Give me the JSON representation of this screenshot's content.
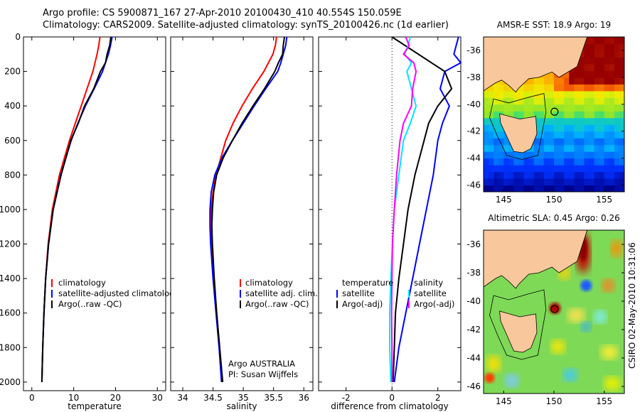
{
  "header": {
    "line1": "Argo profile: CS 5900871_167 27-Apr-2010 20100430_410 40.554S 150.059E",
    "line2": "Climatology: CARS2009. Satellite-adjusted climatology: synTS_20100426.nc (1d earlier)"
  },
  "colors": {
    "climatology": "#ff0000",
    "satellite": "#0000ff",
    "argo": "#000000",
    "argo_salinity_diff": "#ff00ff",
    "satellite_salinity_diff": "#00e5ff",
    "land": "#f9c79c"
  },
  "chart_data": [
    {
      "type": "line",
      "xlabel": "temperature",
      "ylabel": "",
      "xlim": [
        -2,
        32
      ],
      "ylim": [
        2050,
        0
      ],
      "xticks": [
        0,
        10,
        20,
        30
      ],
      "yticks": [
        0,
        200,
        400,
        600,
        800,
        1000,
        1200,
        1400,
        1600,
        1800,
        2000
      ],
      "legend": {
        "placement": "middle-right",
        "entries": [
          "climatology",
          "satellite-adjusted climatology",
          "Argo(..raw -QC)"
        ]
      },
      "series": [
        {
          "name": "climatology",
          "color": "#ff0000",
          "depth": [
            0,
            50,
            100,
            200,
            300,
            400,
            500,
            600,
            800,
            1000,
            1200,
            1400,
            1600,
            1800,
            2000
          ],
          "values": [
            16.3,
            16.0,
            15.6,
            14.6,
            13.2,
            11.8,
            10.4,
            9.0,
            6.6,
            4.9,
            3.9,
            3.3,
            2.9,
            2.6,
            2.4
          ]
        },
        {
          "name": "satellite-adjusted climatology",
          "color": "#0000ff",
          "depth": [
            0,
            50,
            100,
            150,
            200,
            300,
            400,
            500,
            600,
            800,
            1000,
            1200,
            1400,
            1600,
            1800,
            2000
          ],
          "values": [
            19.2,
            18.8,
            18.3,
            17.6,
            16.9,
            14.9,
            12.8,
            11.0,
            9.4,
            6.9,
            5.1,
            4.0,
            3.3,
            2.9,
            2.6,
            2.4
          ]
        },
        {
          "name": "Argo(..raw -QC)",
          "color": "#000000",
          "depth": [
            0,
            50,
            100,
            150,
            200,
            300,
            400,
            500,
            600,
            800,
            1000,
            1200,
            1400,
            1600,
            1800,
            2000
          ],
          "values": [
            18.9,
            18.6,
            18.0,
            17.6,
            16.4,
            14.8,
            12.6,
            11.1,
            9.3,
            7.0,
            5.1,
            4.0,
            3.3,
            2.9,
            2.6,
            2.4
          ]
        }
      ]
    },
    {
      "type": "line",
      "xlabel": "salinity",
      "ylabel": "",
      "xlim": [
        33.8,
        36.15
      ],
      "ylim": [
        2050,
        0
      ],
      "xticks": [
        34,
        34.5,
        35,
        35.5,
        36
      ],
      "legend": {
        "placement": "middle-right",
        "entries": [
          "climatology",
          "satellite adj. clim.",
          "Argo(..raw -QC)"
        ]
      },
      "annotations": [
        "Argo AUSTRALIA",
        "PI: Susan Wijffels"
      ],
      "series": [
        {
          "name": "climatology",
          "color": "#ff0000",
          "depth": [
            0,
            50,
            100,
            200,
            300,
            400,
            500,
            600,
            800,
            900,
            1000,
            1100,
            1200,
            1400,
            1600,
            1800,
            2000
          ],
          "values": [
            35.55,
            35.53,
            35.49,
            35.34,
            35.15,
            34.98,
            34.83,
            34.71,
            34.55,
            34.5,
            34.47,
            34.46,
            34.47,
            34.51,
            34.56,
            34.61,
            34.65
          ]
        },
        {
          "name": "satellite adj. clim.",
          "color": "#0000ff",
          "depth": [
            0,
            50,
            100,
            150,
            200,
            300,
            400,
            500,
            600,
            700,
            800,
            900,
            1000,
            1100,
            1200,
            1400,
            1600,
            1800,
            2000
          ],
          "values": [
            35.72,
            35.7,
            35.66,
            35.62,
            35.57,
            35.37,
            35.18,
            35.0,
            34.82,
            34.65,
            34.53,
            34.47,
            34.45,
            34.45,
            34.46,
            34.5,
            34.55,
            34.6,
            34.64
          ]
        },
        {
          "name": "Argo(..raw -QC)",
          "color": "#000000",
          "depth": [
            0,
            50,
            100,
            150,
            200,
            300,
            400,
            500,
            600,
            700,
            800,
            900,
            1000,
            1100,
            1200,
            1400,
            1600,
            1800,
            2000
          ],
          "values": [
            35.68,
            35.66,
            35.65,
            35.58,
            35.52,
            35.35,
            35.16,
            34.98,
            34.82,
            34.67,
            34.56,
            34.51,
            34.49,
            34.48,
            34.49,
            34.52,
            34.56,
            34.61,
            34.66
          ]
        }
      ]
    },
    {
      "type": "line",
      "xlabel": "difference from climatology",
      "ylabel": "",
      "xlim": [
        -3.2,
        3
      ],
      "ylim": [
        2050,
        0
      ],
      "xticks": [
        -2,
        0,
        2
      ],
      "legend": {
        "placement": "bottom-right",
        "entries": [
          "temperature",
          "satellite",
          "Argo(-adj)",
          "salinity",
          "satellite",
          "Argo(-adj)"
        ]
      },
      "series": [
        {
          "name": "satellite (temperature)",
          "color": "#0000ff",
          "depth": [
            0,
            50,
            100,
            150,
            200,
            300,
            400,
            500,
            600,
            800,
            1000,
            1200,
            1400,
            1600,
            1800,
            2000
          ],
          "values": [
            2.9,
            2.8,
            2.7,
            3.0,
            2.3,
            2.1,
            2.5,
            2.2,
            2.0,
            1.8,
            1.5,
            1.2,
            0.9,
            0.6,
            0.3,
            0.1
          ]
        },
        {
          "name": "Argo(-adj) (temperature)",
          "color": "#000000",
          "depth": [
            0,
            200,
            300,
            400,
            500,
            600,
            800,
            1000,
            1200,
            1400,
            1600,
            1800,
            2000
          ],
          "values": [
            0,
            2.3,
            2.6,
            2.0,
            1.6,
            1.4,
            1.0,
            0.7,
            0.5,
            0.3,
            0.15,
            0.1,
            0.05
          ]
        },
        {
          "name": "satellite (salinity)",
          "color": "#00e5ff",
          "depth": [
            0,
            50,
            100,
            150,
            200,
            300,
            400,
            500,
            600,
            800,
            1000,
            1200,
            1400,
            1600,
            1800,
            2000
          ],
          "values": [
            0.8,
            0.7,
            0.55,
            0.85,
            0.65,
            0.85,
            1.05,
            0.8,
            0.5,
            0.3,
            0.1,
            0.02,
            -0.05,
            -0.1,
            -0.1,
            -0.05
          ]
        },
        {
          "name": "Argo(-adj) (salinity)",
          "color": "#ff00ff",
          "depth": [
            0,
            50,
            100,
            150,
            200,
            300,
            400,
            500,
            600,
            800,
            1000,
            1200,
            1400,
            1600,
            1800,
            2000
          ],
          "values": [
            0.6,
            0.75,
            0.5,
            0.95,
            1.05,
            0.9,
            0.85,
            0.5,
            0.35,
            0.2,
            0.1,
            0.02,
            0.0,
            -0.02,
            0.0,
            0.0
          ]
        }
      ]
    },
    {
      "type": "heatmap",
      "title": "AMSR-E SST: 18.9 Argo: 19",
      "xlim": [
        143,
        157
      ],
      "ylim": [
        -46.5,
        -35
      ],
      "xticks": [
        145,
        150,
        155
      ],
      "yticks": [
        -36,
        -38,
        -40,
        -42,
        -44,
        -46
      ],
      "argo_position": [
        150.059,
        -40.554
      ]
    },
    {
      "type": "heatmap",
      "title": "Altimetric SLA: 0.45 Argo: 0.26",
      "xlim": [
        143,
        157
      ],
      "ylim": [
        -46.5,
        -35
      ],
      "xticks": [
        145,
        150,
        155
      ],
      "yticks": [
        -36,
        -38,
        -40,
        -42,
        -44,
        -46
      ],
      "argo_position": [
        150.059,
        -40.554
      ]
    }
  ],
  "side_label": "CSIRO 02-May-2010 10:31:06"
}
